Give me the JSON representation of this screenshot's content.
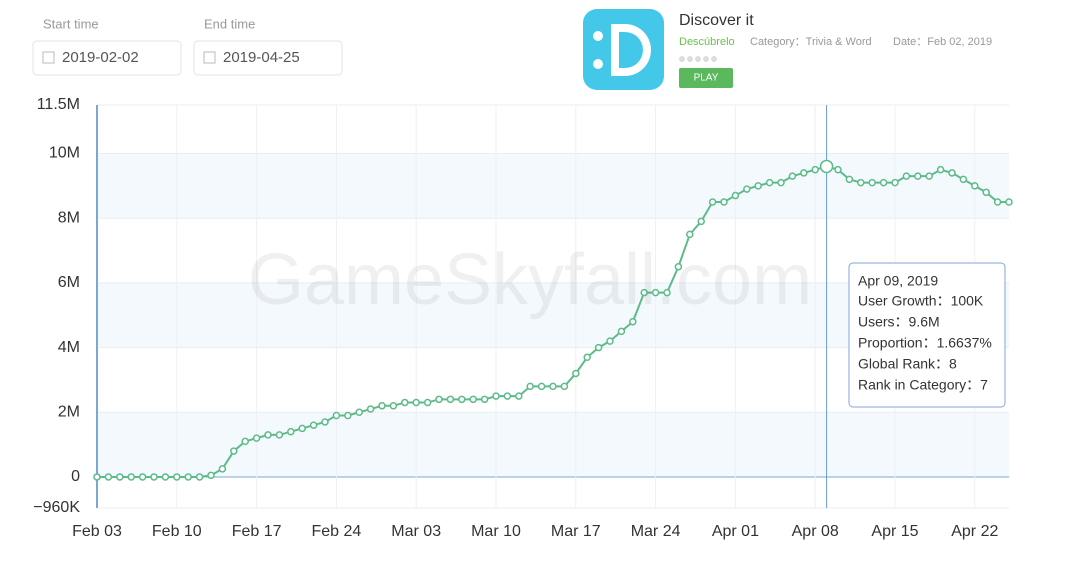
{
  "ui": {
    "start_label": "Start time",
    "start_value": "2019-02-02",
    "end_label": "End time",
    "end_value": "2019-04-25",
    "app": {
      "name": "Discover it",
      "subtitle": "Descúbrelo",
      "category": "Category：Trivia & Word",
      "date": "Date：Feb 02, 2019",
      "button": "PLAY"
    },
    "watermark": "GameSkyfall.com",
    "tooltip": {
      "date": "Apr 09, 2019",
      "lines": [
        "User Growth：100K",
        "Users：9.6M",
        "Proportion：1.6637%",
        "Global Rank：8",
        "Rank in Category：7"
      ]
    }
  },
  "chart_data": {
    "type": "line",
    "color": "#5dbb8a",
    "grid": true,
    "categories": [
      "Feb 03",
      null,
      null,
      null,
      null,
      null,
      null,
      "Feb 10",
      null,
      null,
      null,
      null,
      null,
      null,
      "Feb 17",
      null,
      null,
      null,
      null,
      null,
      null,
      "Feb 24",
      null,
      null,
      null,
      null,
      null,
      null,
      "Mar 03",
      null,
      null,
      null,
      null,
      null,
      null,
      "Mar 10",
      null,
      null,
      null,
      null,
      null,
      null,
      "Mar 17",
      null,
      null,
      null,
      null,
      null,
      null,
      "Mar 24",
      null,
      null,
      null,
      null,
      null,
      null,
      "Apr 01",
      null,
      null,
      null,
      null,
      null,
      null,
      "Apr 08",
      null,
      null,
      null,
      null,
      null,
      null,
      "Apr 15",
      null,
      null,
      null,
      null,
      null,
      null,
      "Apr 22",
      null,
      null,
      null
    ],
    "values": [
      0,
      0,
      0,
      0,
      0,
      0,
      0,
      0,
      0,
      0,
      50000,
      250000,
      800000,
      1100000,
      1200000,
      1300000,
      1300000,
      1400000,
      1500000,
      1600000,
      1700000,
      1900000,
      1900000,
      2000000,
      2100000,
      2200000,
      2200000,
      2300000,
      2300000,
      2300000,
      2400000,
      2400000,
      2400000,
      2400000,
      2400000,
      2500000,
      2500000,
      2500000,
      2800000,
      2800000,
      2800000,
      2800000,
      3200000,
      3700000,
      4000000,
      4200000,
      4500000,
      4800000,
      5700000,
      5700000,
      5700000,
      6500000,
      7500000,
      7900000,
      8500000,
      8500000,
      8700000,
      8900000,
      9000000,
      9100000,
      9100000,
      9300000,
      9400000,
      9500000,
      9600000,
      9500000,
      9200000,
      9100000,
      9100000,
      9100000,
      9100000,
      9300000,
      9300000,
      9300000,
      9500000,
      9400000,
      9200000,
      9000000,
      8800000,
      8500000,
      8500000
    ],
    "ylim": [
      -960000,
      11500000
    ],
    "yticks": [
      {
        "value": -960000,
        "label": "−960K"
      },
      0,
      {
        "value": 2000000,
        "label": "2M"
      },
      {
        "value": 4000000,
        "label": "4M"
      },
      {
        "value": 6000000,
        "label": "6M"
      },
      {
        "value": 8000000,
        "label": "8M"
      },
      {
        "value": 10000000,
        "label": "10M"
      },
      {
        "value": 11500000,
        "label": "11.5M"
      }
    ]
  }
}
